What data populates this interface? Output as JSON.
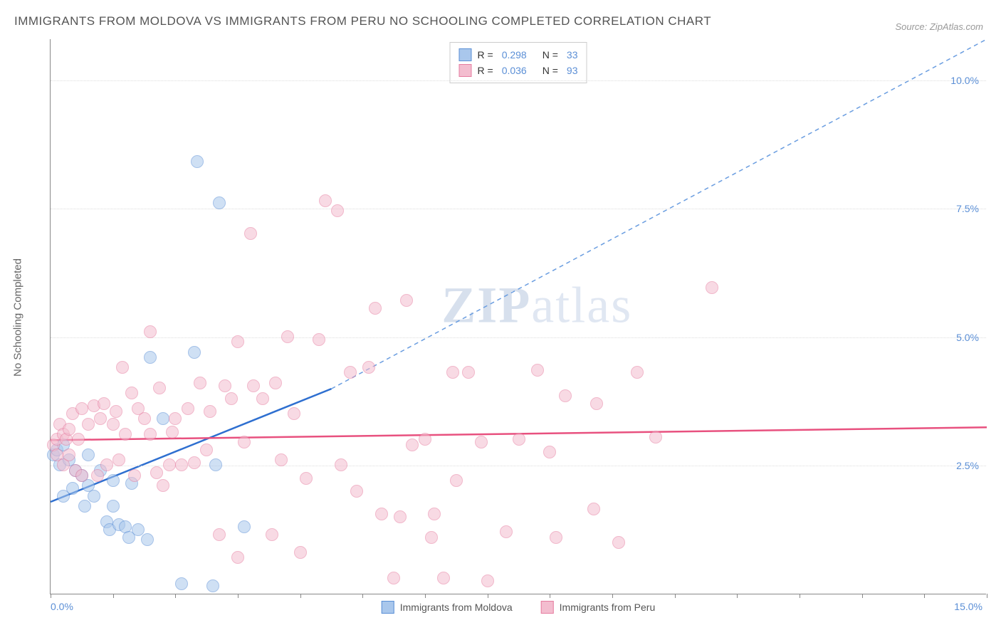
{
  "title": "IMMIGRANTS FROM MOLDOVA VS IMMIGRANTS FROM PERU NO SCHOOLING COMPLETED CORRELATION CHART",
  "source": "Source: ZipAtlas.com",
  "ylabel": "No Schooling Completed",
  "watermark_bold": "ZIP",
  "watermark_rest": "atlas",
  "chart": {
    "type": "scatter",
    "xlim": [
      0,
      15
    ],
    "ylim": [
      0,
      10.8
    ],
    "x_tick_step": 1,
    "x_start_label": "0.0%",
    "x_end_label": "15.0%",
    "y_ticks": [
      2.5,
      5.0,
      7.5,
      10.0
    ],
    "y_tick_labels": [
      "2.5%",
      "5.0%",
      "7.5%",
      "10.0%"
    ],
    "background_color": "#ffffff",
    "grid_color": "#dddddd",
    "axis_color": "#888888",
    "tick_label_color": "#5b8fd6",
    "marker_radius": 9,
    "marker_opacity": 0.55,
    "series": [
      {
        "name": "Immigrants from Moldova",
        "fill": "#a9c7ec",
        "stroke": "#5b8fd6",
        "line_color": "#2e6fd0",
        "line_width": 2.5,
        "dash_color": "#6a9de0",
        "R": "0.298",
        "N": "33",
        "trend": {
          "x1": 0.0,
          "y1": 1.8,
          "x2": 4.5,
          "y2": 4.0,
          "dash_to_x": 15.0,
          "dash_to_y": 10.8
        },
        "points": [
          [
            0.05,
            2.7
          ],
          [
            0.1,
            2.8
          ],
          [
            0.15,
            2.5
          ],
          [
            0.2,
            2.9
          ],
          [
            0.3,
            2.6
          ],
          [
            0.2,
            1.9
          ],
          [
            0.35,
            2.05
          ],
          [
            0.5,
            2.3
          ],
          [
            0.55,
            1.7
          ],
          [
            0.6,
            2.1
          ],
          [
            0.7,
            1.9
          ],
          [
            0.8,
            2.4
          ],
          [
            0.9,
            1.4
          ],
          [
            0.95,
            1.25
          ],
          [
            1.0,
            1.7
          ],
          [
            1.1,
            1.35
          ],
          [
            1.2,
            1.3
          ],
          [
            1.25,
            1.1
          ],
          [
            1.3,
            2.15
          ],
          [
            1.4,
            1.25
          ],
          [
            1.55,
            1.05
          ],
          [
            1.6,
            4.6
          ],
          [
            1.8,
            3.4
          ],
          [
            2.1,
            0.2
          ],
          [
            2.3,
            4.7
          ],
          [
            2.35,
            8.4
          ],
          [
            2.6,
            0.15
          ],
          [
            2.65,
            2.5
          ],
          [
            2.7,
            7.6
          ],
          [
            3.1,
            1.3
          ],
          [
            0.4,
            2.4
          ],
          [
            0.6,
            2.7
          ],
          [
            1.0,
            2.2
          ]
        ]
      },
      {
        "name": "Immigrants from Peru",
        "fill": "#f3bdcf",
        "stroke": "#e67da0",
        "line_color": "#e8517f",
        "line_width": 2.5,
        "R": "0.036",
        "N": "93",
        "trend": {
          "x1": 0.0,
          "y1": 3.0,
          "x2": 15.0,
          "y2": 3.25
        },
        "points": [
          [
            0.05,
            2.9
          ],
          [
            0.1,
            3.0
          ],
          [
            0.1,
            2.7
          ],
          [
            0.15,
            3.3
          ],
          [
            0.2,
            2.5
          ],
          [
            0.2,
            3.1
          ],
          [
            0.25,
            3.0
          ],
          [
            0.3,
            2.7
          ],
          [
            0.3,
            3.2
          ],
          [
            0.35,
            3.5
          ],
          [
            0.4,
            2.4
          ],
          [
            0.45,
            3.0
          ],
          [
            0.5,
            3.6
          ],
          [
            0.5,
            2.3
          ],
          [
            0.6,
            3.3
          ],
          [
            0.7,
            3.65
          ],
          [
            0.75,
            2.3
          ],
          [
            0.8,
            3.4
          ],
          [
            0.85,
            3.7
          ],
          [
            0.9,
            2.5
          ],
          [
            1.0,
            3.3
          ],
          [
            1.05,
            3.55
          ],
          [
            1.1,
            2.6
          ],
          [
            1.15,
            4.4
          ],
          [
            1.2,
            3.1
          ],
          [
            1.3,
            3.9
          ],
          [
            1.35,
            2.3
          ],
          [
            1.4,
            3.6
          ],
          [
            1.5,
            3.4
          ],
          [
            1.6,
            3.1
          ],
          [
            1.6,
            5.1
          ],
          [
            1.7,
            2.35
          ],
          [
            1.75,
            4.0
          ],
          [
            1.8,
            2.1
          ],
          [
            1.9,
            2.5
          ],
          [
            2.0,
            3.4
          ],
          [
            2.1,
            2.5
          ],
          [
            2.2,
            3.6
          ],
          [
            2.3,
            2.55
          ],
          [
            2.4,
            4.1
          ],
          [
            2.5,
            2.8
          ],
          [
            2.55,
            3.55
          ],
          [
            2.7,
            1.15
          ],
          [
            2.8,
            4.05
          ],
          [
            3.0,
            4.9
          ],
          [
            3.0,
            0.7
          ],
          [
            3.1,
            2.95
          ],
          [
            3.2,
            7.0
          ],
          [
            3.25,
            4.05
          ],
          [
            3.4,
            3.8
          ],
          [
            3.55,
            1.15
          ],
          [
            3.6,
            4.1
          ],
          [
            3.7,
            2.6
          ],
          [
            3.8,
            5.0
          ],
          [
            4.0,
            0.8
          ],
          [
            4.1,
            2.25
          ],
          [
            4.3,
            4.95
          ],
          [
            4.4,
            7.65
          ],
          [
            4.6,
            7.45
          ],
          [
            4.65,
            2.5
          ],
          [
            4.9,
            2.0
          ],
          [
            5.1,
            4.4
          ],
          [
            5.2,
            5.55
          ],
          [
            5.3,
            1.55
          ],
          [
            5.5,
            0.3
          ],
          [
            5.6,
            1.5
          ],
          [
            5.7,
            5.7
          ],
          [
            5.8,
            2.9
          ],
          [
            6.0,
            3.0
          ],
          [
            6.1,
            1.1
          ],
          [
            6.15,
            1.55
          ],
          [
            6.3,
            0.3
          ],
          [
            6.45,
            4.3
          ],
          [
            6.7,
            4.3
          ],
          [
            6.9,
            2.95
          ],
          [
            7.0,
            0.25
          ],
          [
            7.3,
            1.2
          ],
          [
            7.5,
            3.0
          ],
          [
            7.8,
            4.35
          ],
          [
            8.1,
            1.1
          ],
          [
            8.25,
            3.85
          ],
          [
            8.7,
            1.65
          ],
          [
            8.75,
            3.7
          ],
          [
            9.1,
            1.0
          ],
          [
            9.4,
            4.3
          ],
          [
            10.6,
            5.95
          ],
          [
            9.7,
            3.05
          ],
          [
            4.8,
            4.3
          ],
          [
            3.9,
            3.5
          ],
          [
            2.9,
            3.8
          ],
          [
            1.95,
            3.15
          ],
          [
            8.0,
            2.75
          ],
          [
            6.5,
            2.2
          ]
        ]
      }
    ]
  },
  "legend_top": {
    "r_label": "R =",
    "n_label": "N ="
  },
  "legend_bottom_labels": [
    "Immigrants from Moldova",
    "Immigrants from Peru"
  ]
}
